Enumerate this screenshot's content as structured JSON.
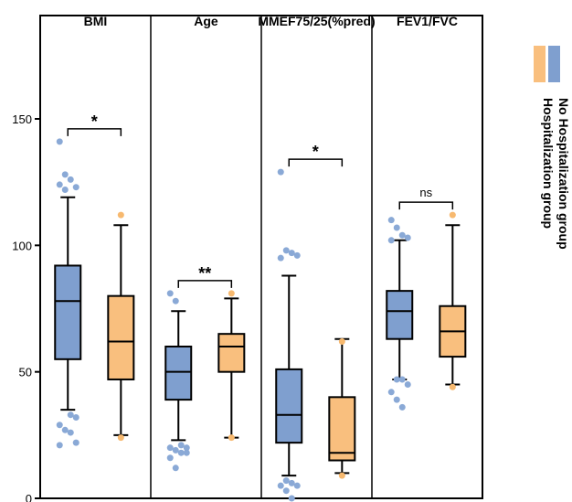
{
  "chart_data": {
    "type": "box",
    "ylim": [
      0,
      180
    ],
    "yticks": [
      0,
      50,
      100,
      150
    ],
    "grid": false,
    "legend_position": "right, rotated",
    "colors": {
      "No Hospitalization group": "#7f9fcf",
      "Hospitalization group": "#f9bf7e",
      "no_hosp_points": "#8aa9d6",
      "hosp_points": "#f7b96f"
    },
    "legend": [
      {
        "label": "No Hospitalization group",
        "color": "#7f9fcf"
      },
      {
        "label": "Hospitalization group",
        "color": "#f9bf7e"
      }
    ],
    "panels": [
      {
        "title": "BMI",
        "significance": "*",
        "boxes": [
          {
            "group": "No Hospitalization group",
            "whisker_low": 35,
            "q1": 55,
            "median": 78,
            "q3": 92,
            "whisker_high": 119,
            "outliers": [
              141,
              128,
              126,
              123,
              124,
              122,
              33,
              32,
              29,
              27,
              26,
              22,
              21
            ]
          },
          {
            "group": "Hospitalization group",
            "whisker_low": 25,
            "q1": 47,
            "median": 62,
            "q3": 80,
            "whisker_high": 108,
            "outliers": [
              112,
              24
            ]
          }
        ]
      },
      {
        "title": "Age",
        "significance": "**",
        "boxes": [
          {
            "group": "No Hospitalization group",
            "whisker_low": 23,
            "q1": 39,
            "median": 50,
            "q3": 60,
            "whisker_high": 74,
            "outliers": [
              81,
              78,
              21,
              20,
              20,
              19,
              18,
              18,
              16,
              12
            ]
          },
          {
            "group": "Hospitalization group",
            "whisker_low": 24,
            "q1": 50,
            "median": 60,
            "q3": 65,
            "whisker_high": 79,
            "outliers": [
              81,
              24
            ]
          }
        ]
      },
      {
        "title": "MMEF75/25(%pred)",
        "significance": "*",
        "boxes": [
          {
            "group": "No Hospitalization group",
            "whisker_low": 9,
            "q1": 22,
            "median": 33,
            "q3": 51,
            "whisker_high": 88,
            "outliers": [
              129,
              98,
              97,
              96,
              95,
              7,
              6,
              5,
              5,
              3,
              0
            ]
          },
          {
            "group": "Hospitalization group",
            "whisker_low": 10,
            "q1": 15,
            "median": 18,
            "q3": 40,
            "whisker_high": 63,
            "outliers": [
              62,
              9
            ]
          }
        ]
      },
      {
        "title": "FEV1/FVC",
        "significance": "ns",
        "boxes": [
          {
            "group": "No Hospitalization group",
            "whisker_low": 47,
            "q1": 63,
            "median": 74,
            "q3": 82,
            "whisker_high": 102,
            "outliers": [
              110,
              107,
              104,
              103,
              102,
              47,
              47,
              45,
              42,
              39,
              36
            ]
          },
          {
            "group": "Hospitalization group",
            "whisker_low": 45,
            "q1": 56,
            "median": 66,
            "q3": 76,
            "whisker_high": 108,
            "outliers": [
              112,
              44
            ]
          }
        ]
      }
    ]
  }
}
